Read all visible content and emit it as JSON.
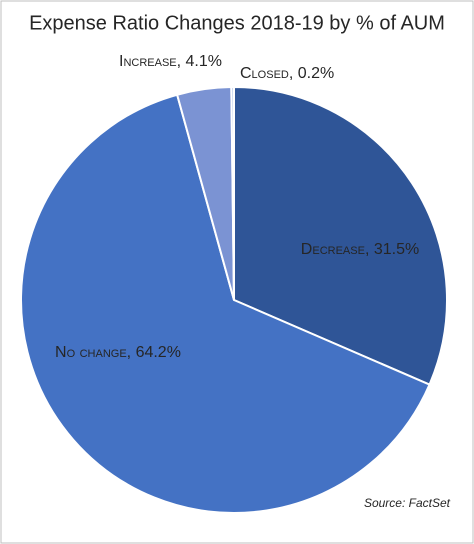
{
  "chart_data": {
    "type": "pie",
    "title": "Expense Ratio Changes 2018-19 by % of AUM",
    "categories": [
      "Decrease",
      "No change",
      "Increase",
      "Closed"
    ],
    "values": [
      31.5,
      64.2,
      4.1,
      0.2
    ],
    "value_labels": [
      "31.5%",
      "64.2%",
      "4.1%",
      "0.2%"
    ],
    "label_separator": ", ",
    "colors": [
      "#2f5597",
      "#4472c4",
      "#7b93d3",
      "#b4c7e7"
    ],
    "source": "Source: FactSet"
  }
}
